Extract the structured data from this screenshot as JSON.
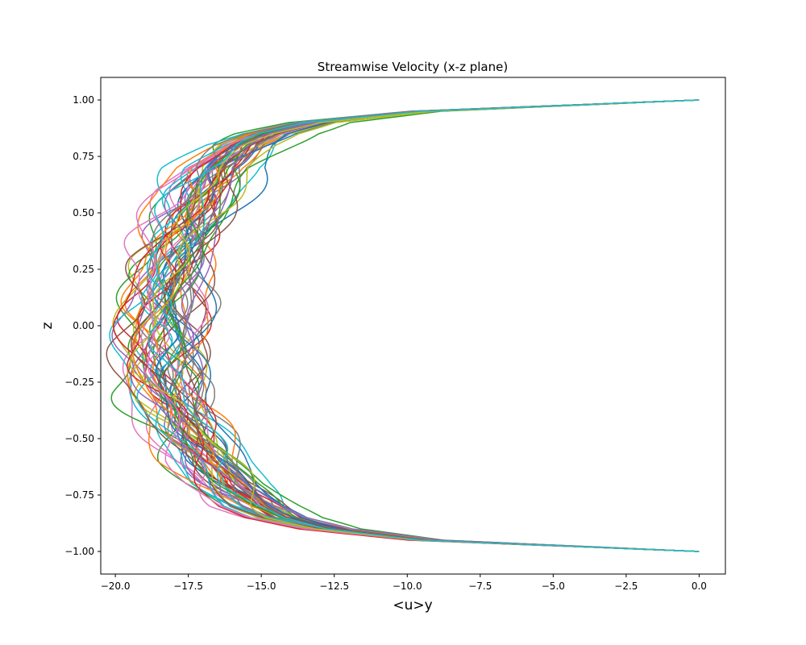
{
  "chart_data": {
    "type": "line",
    "title": "Streamwise Velocity (x-z plane)",
    "xlabel": "<u>y",
    "ylabel": "z",
    "xlim": [
      -20.5,
      0.9
    ],
    "ylim": [
      -1.1,
      1.1
    ],
    "x_ticks": [
      -20.0,
      -17.5,
      -15.0,
      -12.5,
      -10.0,
      -7.5,
      -5.0,
      -2.5,
      0.0
    ],
    "x_tick_labels": [
      "−20.0",
      "−17.5",
      "−15.0",
      "−12.5",
      "−10.0",
      "−7.5",
      "−5.0",
      "−2.5",
      "0.0"
    ],
    "y_ticks": [
      -1.0,
      -0.75,
      -0.5,
      -0.25,
      0.0,
      0.25,
      0.5,
      0.75,
      1.0
    ],
    "y_tick_labels": [
      "−1.00",
      "−0.75",
      "−0.50",
      "−0.25",
      "0.00",
      "0.25",
      "0.50",
      "0.75",
      "1.00"
    ],
    "grid": false,
    "legend": "none",
    "profile_count": 60,
    "profile_shape": {
      "z": [
        1.0,
        0.95,
        0.9,
        0.85,
        0.8,
        0.7,
        0.6,
        0.5,
        0.4,
        0.3,
        0.2,
        0.1,
        0.0,
        -0.1,
        -0.2,
        -0.3,
        -0.4,
        -0.5,
        -0.6,
        -0.7,
        -0.8,
        -0.85,
        -0.9,
        -0.95,
        -1.0
      ],
      "u_mean": [
        0.0,
        -9.5,
        -13.3,
        -14.8,
        -15.6,
        -16.6,
        -17.1,
        -17.5,
        -17.8,
        -18.1,
        -18.3,
        -18.4,
        -18.5,
        -18.5,
        -18.4,
        -18.2,
        -17.8,
        -17.4,
        -16.9,
        -16.2,
        -15.2,
        -14.4,
        -12.8,
        -9.4,
        0.0
      ],
      "u_spread": [
        0.0,
        0.3,
        0.55,
        0.75,
        0.9,
        0.95,
        1.0,
        1.0,
        1.0,
        1.0,
        1.0,
        1.0,
        1.0,
        1.0,
        1.0,
        1.0,
        1.0,
        1.0,
        1.0,
        0.95,
        0.9,
        0.75,
        0.55,
        0.3,
        0.0
      ]
    },
    "colors": [
      "#1f77b4",
      "#ff7f0e",
      "#2ca02c",
      "#d62728",
      "#9467bd",
      "#8c564b",
      "#e377c2",
      "#7f7f7f",
      "#bcbd22",
      "#17becf"
    ]
  }
}
